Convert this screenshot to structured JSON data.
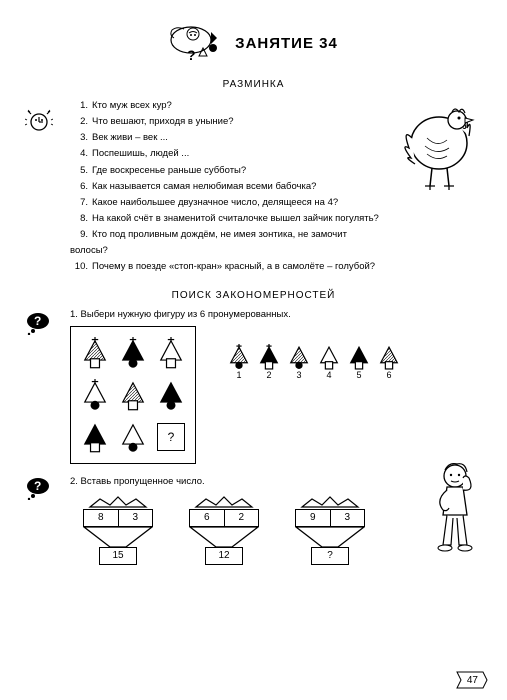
{
  "lesson_title": "ЗАНЯТИЕ 34",
  "section1": "РАЗМИНКА",
  "section2": "ПОИСК ЗАКОНОМЕРНОСТЕЙ",
  "questions": [
    "Кто муж всех кур?",
    "Что вешают, приходя в уныние?",
    "Век живи – век ...",
    "Поспешишь, людей ...",
    "Где воскресенье раньше субботы?",
    "Как называется самая нелюбимая всеми бабочка?",
    "Какое наибольшее двузначное число, делящееся на 4?",
    "На какой счёт в знаменитой считалочке вышел зайчик погулять?",
    "Кто под проливным дождём, не имея зонтика, не замочит волосы?",
    "Почему в поезде «стоп-кран» красный, а в самолёте – голубой?"
  ],
  "task1_prompt": "1. Выбери нужную фигуру из 6 пронумерованных.",
  "task2_prompt": "2. Вставь пропущенное число.",
  "option_numbers": [
    "1",
    "2",
    "3",
    "4",
    "5",
    "6"
  ],
  "towers": [
    {
      "a": "8",
      "b": "3",
      "res": "15"
    },
    {
      "a": "6",
      "b": "2",
      "res": "12"
    },
    {
      "a": "9",
      "b": "3",
      "res": "?"
    }
  ],
  "page_number": "47",
  "question_mark": "?",
  "colors": {
    "ink": "#000000",
    "paper": "#ffffff",
    "hatch": "#888888"
  }
}
